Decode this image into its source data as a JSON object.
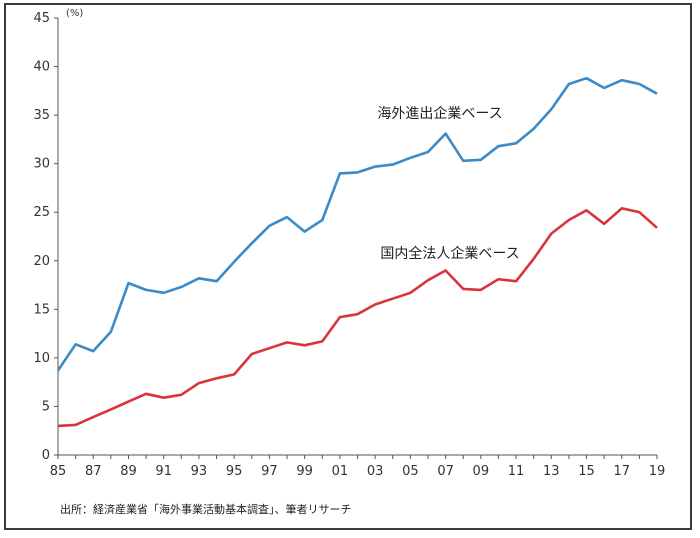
{
  "chart_data": {
    "type": "line",
    "unit_label": "(%)",
    "source_note": "出所：経済産業省「海外事業活動基本調査」、筆者リサーチ",
    "x": [
      1985,
      1986,
      1987,
      1988,
      1989,
      1990,
      1991,
      1992,
      1993,
      1994,
      1995,
      1996,
      1997,
      1998,
      1999,
      2000,
      2001,
      2002,
      2003,
      2004,
      2005,
      2006,
      2007,
      2008,
      2009,
      2010,
      2011,
      2012,
      2013,
      2014,
      2015,
      2016,
      2017,
      2018,
      2019
    ],
    "x_tick_labels": [
      "85",
      "87",
      "89",
      "91",
      "93",
      "95",
      "97",
      "99",
      "01",
      "03",
      "05",
      "07",
      "09",
      "11",
      "13",
      "15",
      "17",
      "19"
    ],
    "ylim": [
      0,
      45
    ],
    "y_ticks": [
      0,
      5,
      10,
      15,
      20,
      25,
      30,
      35,
      40,
      45
    ],
    "grid": false,
    "series": [
      {
        "name": "海外進出企業ベース",
        "color": "#3a8bc8",
        "values": [
          8.7,
          11.4,
          10.7,
          12.7,
          17.7,
          17.0,
          16.7,
          17.3,
          18.2,
          17.9,
          19.9,
          21.8,
          23.6,
          24.5,
          23.0,
          24.2,
          29.0,
          29.1,
          29.7,
          29.9,
          30.6,
          31.2,
          33.1,
          30.3,
          30.4,
          31.8,
          32.1,
          33.6,
          35.6,
          38.2,
          38.8,
          37.8,
          38.6,
          38.2,
          37.2
        ]
      },
      {
        "name": "国内全法人企業ベース",
        "color": "#d9343c",
        "values": [
          3.0,
          3.1,
          3.9,
          4.7,
          5.5,
          6.3,
          5.9,
          6.2,
          7.4,
          7.9,
          8.3,
          10.4,
          11.0,
          11.6,
          11.3,
          11.7,
          14.2,
          14.5,
          15.5,
          16.1,
          16.7,
          18.0,
          19.0,
          17.1,
          17.0,
          18.1,
          17.9,
          20.2,
          22.8,
          24.2,
          25.2,
          23.8,
          25.4,
          25.0,
          23.4
        ]
      }
    ]
  }
}
